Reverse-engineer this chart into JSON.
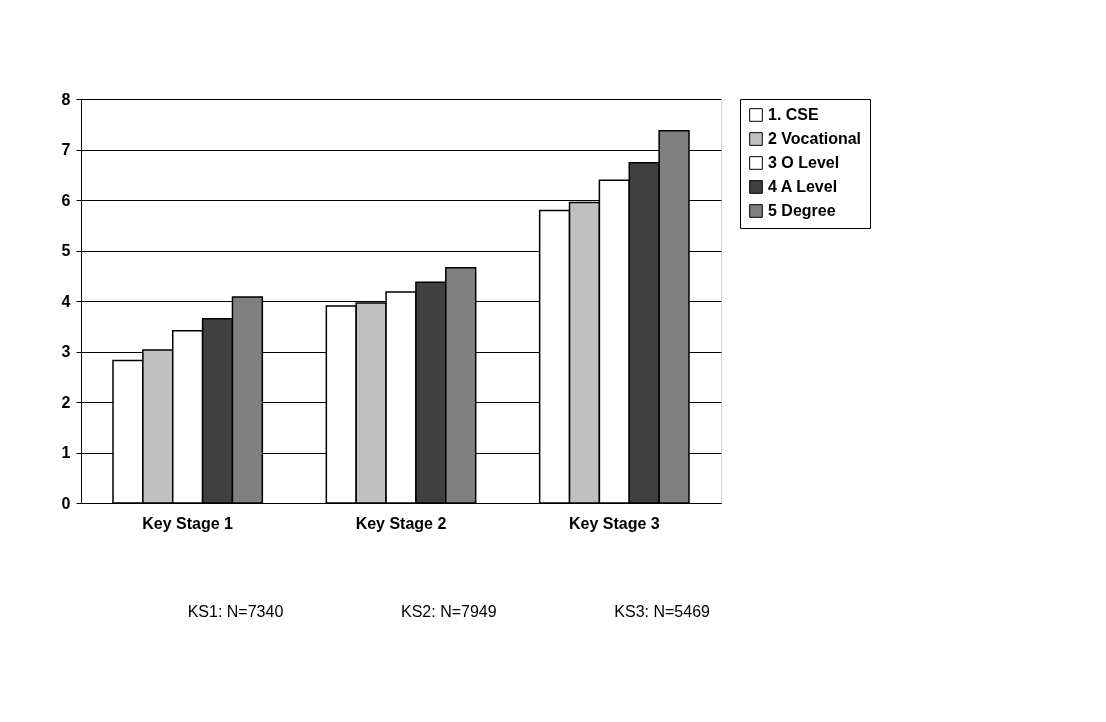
{
  "chart_data": {
    "type": "bar",
    "categories": [
      "Key Stage 1",
      "Key Stage 2",
      "Key Stage 3"
    ],
    "series": [
      {
        "name": "1. CSE",
        "color": "#ffffff",
        "values": [
          2.82,
          3.9,
          5.79
        ]
      },
      {
        "name": "2 Vocational",
        "color": "#c0c0c0",
        "values": [
          3.03,
          3.96,
          5.95
        ]
      },
      {
        "name": "3 O Level",
        "color": "#ffffff",
        "values": [
          3.41,
          4.18,
          6.39
        ]
      },
      {
        "name": "4 A Level",
        "color": "#404040",
        "values": [
          3.65,
          4.37,
          6.74
        ]
      },
      {
        "name": "5 Degree",
        "color": "#808080",
        "values": [
          4.08,
          4.66,
          7.37
        ]
      }
    ],
    "ylim": [
      0,
      8
    ],
    "yticks": [
      0,
      1,
      2,
      3,
      4,
      5,
      6,
      7,
      8
    ],
    "grid": "y",
    "legend": "right",
    "annotations": [
      "KS1: N=7340",
      "KS2: N=7949",
      "KS3: N=5469"
    ]
  }
}
